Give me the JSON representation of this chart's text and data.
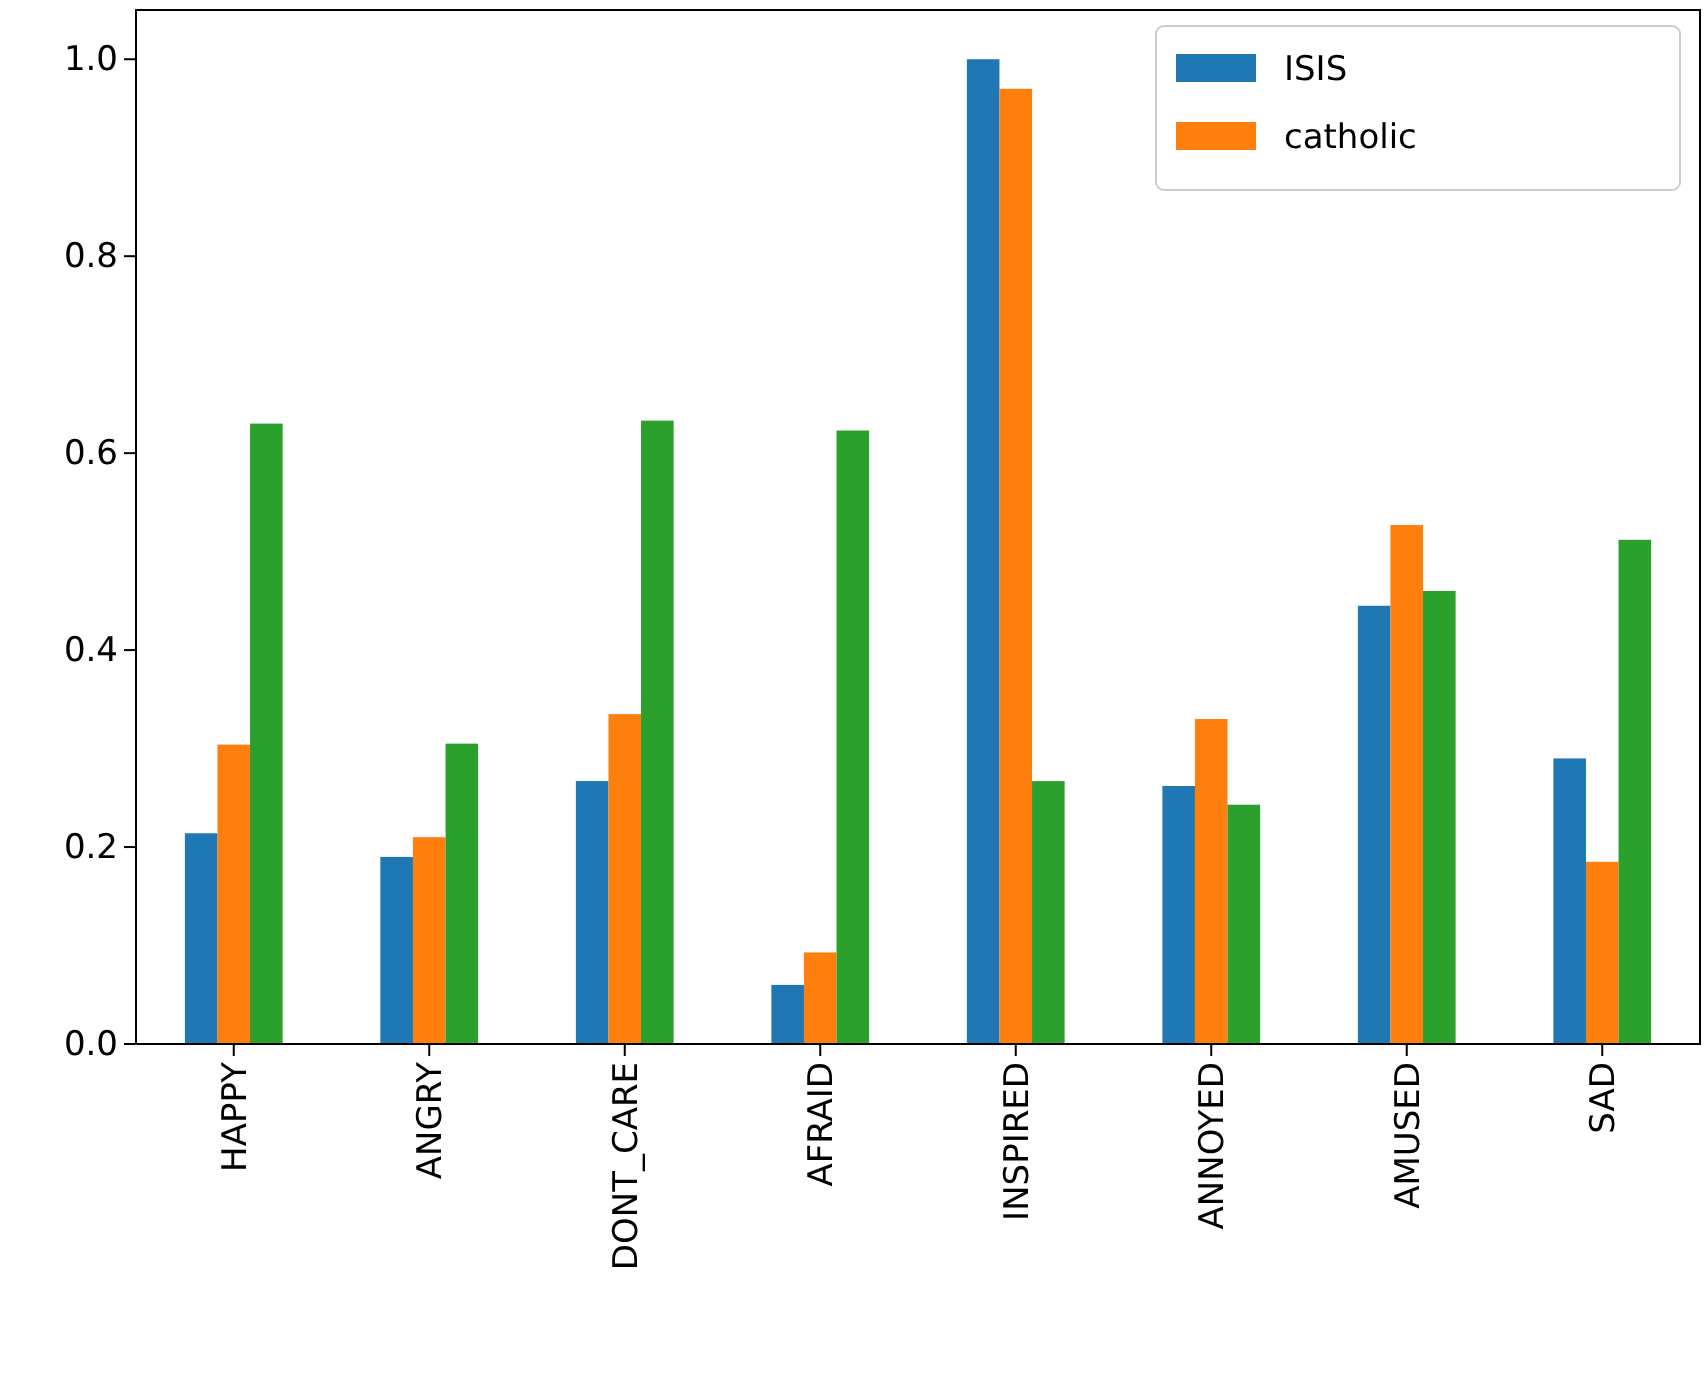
{
  "chart_data": {
    "type": "bar",
    "categories": [
      "HAPPY",
      "ANGRY",
      "DONT_CARE",
      "AFRAID",
      "INSPIRED",
      "ANNOYED",
      "AMUSED",
      "SAD"
    ],
    "series": [
      {
        "name": "ISIS",
        "color": "#1f77b4",
        "values": [
          0.214,
          0.19,
          0.267,
          0.06,
          1.0,
          0.262,
          0.445,
          0.29
        ]
      },
      {
        "name": "catholic",
        "color": "#ff7f0e",
        "values": [
          0.304,
          0.21,
          0.335,
          0.093,
          0.97,
          0.33,
          0.527,
          0.185
        ]
      },
      {
        "color": "#2ca02c",
        "values": [
          0.63,
          0.305,
          0.633,
          0.623,
          0.267,
          0.243,
          0.46,
          0.512
        ]
      }
    ],
    "ylim": [
      0,
      1.05
    ],
    "yticks": [
      {
        "value": 0,
        "label": "0.0"
      },
      {
        "value": 0.2,
        "label": "0.2"
      },
      {
        "value": 0.4,
        "label": "0.4"
      },
      {
        "value": 0.6,
        "label": "0.6"
      },
      {
        "value": 0.8,
        "label": "0.8"
      },
      {
        "value": 1,
        "label": "1.0"
      }
    ],
    "legend": "top right"
  }
}
